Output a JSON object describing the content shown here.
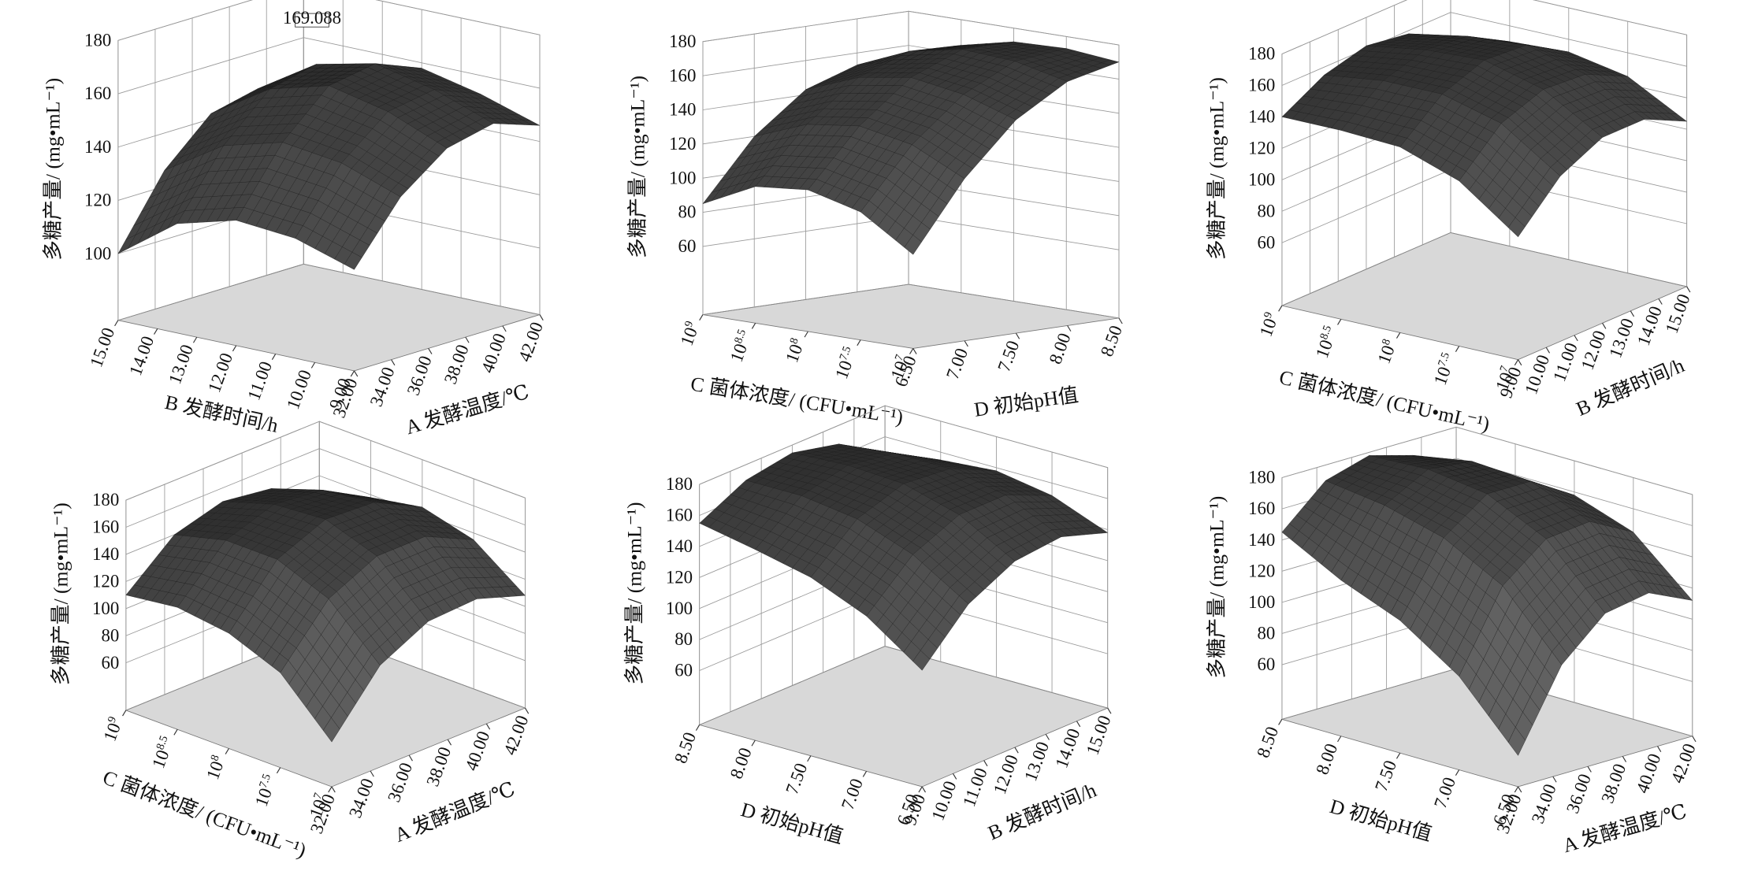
{
  "chart_data": [
    {
      "type": "surface",
      "annotation": "169.088",
      "zlabel": "多糖产量/ (mg•mL⁻¹)",
      "zlim": [
        75,
        180
      ],
      "zticks": [
        100,
        120,
        140,
        160,
        180
      ],
      "xlabel": "B 发酵时间/h",
      "xlim": [
        9,
        15
      ],
      "xticks": [
        {
          "value": 9,
          "label": "9.00"
        },
        {
          "value": 10,
          "label": "10.00"
        },
        {
          "value": 11,
          "label": "11.00"
        },
        {
          "value": 12,
          "label": "12.00"
        },
        {
          "value": 13,
          "label": "13.00"
        },
        {
          "value": 14,
          "label": "14.00"
        },
        {
          "value": 15,
          "label": "15.00"
        }
      ],
      "ylabel": "A 发酵温度/℃",
      "ylim": [
        32,
        42
      ],
      "yticks": [
        {
          "value": 32,
          "label": "32.00"
        },
        {
          "value": 34,
          "label": "34.00"
        },
        {
          "value": 36,
          "label": "36.00"
        },
        {
          "value": 38,
          "label": "38.00"
        },
        {
          "value": 40,
          "label": "40.00"
        },
        {
          "value": 42,
          "label": "42.00"
        }
      ],
      "x": [
        9,
        10.5,
        12,
        13.5,
        15
      ],
      "y": [
        32,
        34.5,
        37,
        39.5,
        42
      ],
      "z": [
        [
          113,
          135,
          148,
          152,
          146
        ],
        [
          120,
          143,
          157,
          160,
          153
        ],
        [
          122,
          146,
          162,
          165,
          158
        ],
        [
          116,
          140,
          156,
          160,
          152
        ],
        [
          100,
          126,
          142,
          146,
          138
        ]
      ],
      "color": "#4a4a4a"
    },
    {
      "type": "surface",
      "zlabel": "多糖产量/ (mg•mL⁻¹)",
      "zlim": [
        20,
        180
      ],
      "zticks": [
        60,
        80,
        100,
        120,
        140,
        160,
        180
      ],
      "xlabel": "C 菌体浓度/ (CFU•mL⁻¹)",
      "xlim": [
        7,
        9
      ],
      "xtick_style": "exponent",
      "xticks": [
        {
          "value": 7,
          "label": "10"
        },
        {
          "value": 7.5,
          "label": "10"
        },
        {
          "value": 8,
          "label": "10"
        },
        {
          "value": 8.5,
          "label": "10"
        },
        {
          "value": 9,
          "label": "10"
        }
      ],
      "ylabel": "D 初始pH值",
      "ylim": [
        6.5,
        8.5
      ],
      "yticks": [
        {
          "value": 6.5,
          "label": "6.50"
        },
        {
          "value": 7,
          "label": "7.00"
        },
        {
          "value": 7.5,
          "label": "7.50"
        },
        {
          "value": 8,
          "label": "8.00"
        },
        {
          "value": 8.5,
          "label": "8.50"
        }
      ],
      "x": [
        7,
        7.5,
        8,
        8.5,
        9
      ],
      "y": [
        6.5,
        7,
        7.5,
        8,
        8.5
      ],
      "z": [
        [
          75,
          115,
          145,
          163,
          170
        ],
        [
          95,
          130,
          155,
          170,
          173
        ],
        [
          103,
          136,
          160,
          172,
          172
        ],
        [
          100,
          132,
          155,
          166,
          165
        ],
        [
          85,
          120,
          143,
          153,
          150
        ]
      ],
      "color": "#4a4a4a"
    },
    {
      "type": "surface",
      "zlabel": "多糖产量/ (mg•mL⁻¹)",
      "zlim": [
        20,
        180
      ],
      "zticks": [
        60,
        80,
        100,
        120,
        140,
        160,
        180
      ],
      "xlabel": "C 菌体浓度/ (CFU•mL⁻¹)",
      "xlim": [
        7,
        9
      ],
      "xtick_style": "exponent",
      "xticks": [
        {
          "value": 7,
          "label": "10"
        },
        {
          "value": 7.5,
          "label": "10"
        },
        {
          "value": 8,
          "label": "10"
        },
        {
          "value": 8.5,
          "label": "10"
        },
        {
          "value": 9,
          "label": "10"
        }
      ],
      "ylabel": "B 发酵时间/h",
      "ylim": [
        9,
        15
      ],
      "yticks": [
        {
          "value": 9,
          "label": "9.00"
        },
        {
          "value": 10,
          "label": "10.00"
        },
        {
          "value": 11,
          "label": "11.00"
        },
        {
          "value": 12,
          "label": "12.00"
        },
        {
          "value": 13,
          "label": "13.00"
        },
        {
          "value": 14,
          "label": "14.00"
        },
        {
          "value": 15,
          "label": "15.00"
        }
      ],
      "x": [
        7,
        7.5,
        8,
        8.5,
        9
      ],
      "y": [
        9,
        10.5,
        12,
        13.5,
        15
      ],
      "z": [
        [
          98,
          125,
          138,
          138,
          125
        ],
        [
          125,
          150,
          160,
          158,
          145
        ],
        [
          138,
          160,
          170,
          168,
          152
        ],
        [
          140,
          160,
          168,
          165,
          150
        ],
        [
          140,
          155,
          162,
          158,
          140
        ]
      ],
      "color": "#4a4a4a"
    },
    {
      "type": "surface",
      "zlabel": "多糖产量/ (mg•mL⁻¹)",
      "zlim": [
        25,
        180
      ],
      "zticks": [
        60,
        80,
        100,
        120,
        140,
        160,
        180
      ],
      "xlabel": "C 菌体浓度/ (CFU•mL⁻¹)",
      "xlim": [
        7,
        9
      ],
      "xtick_style": "exponent",
      "xticks": [
        {
          "value": 7,
          "label": "10"
        },
        {
          "value": 7.5,
          "label": "10"
        },
        {
          "value": 8,
          "label": "10"
        },
        {
          "value": 8.5,
          "label": "10"
        },
        {
          "value": 9,
          "label": "10"
        }
      ],
      "ylabel": "A 发酵温度/℃",
      "ylim": [
        32,
        42
      ],
      "yticks": [
        {
          "value": 32,
          "label": "32.00"
        },
        {
          "value": 34,
          "label": "34.00"
        },
        {
          "value": 36,
          "label": "36.00"
        },
        {
          "value": 38,
          "label": "38.00"
        },
        {
          "value": 40,
          "label": "40.00"
        },
        {
          "value": 42,
          "label": "42.00"
        }
      ],
      "x": [
        7,
        7.5,
        8,
        8.5,
        9
      ],
      "y": [
        32,
        34.5,
        37,
        39.5,
        42
      ],
      "z": [
        [
          58,
          100,
          118,
          120,
          108
        ],
        [
          95,
          135,
          152,
          152,
          135
        ],
        [
          110,
          150,
          165,
          163,
          145
        ],
        [
          115,
          150,
          162,
          158,
          138
        ],
        [
          110,
          140,
          150,
          145,
          125
        ]
      ],
      "color": "#4a4a4a"
    },
    {
      "type": "surface",
      "zlabel": "多糖产量/ (mg•mL⁻¹)",
      "zlim": [
        25,
        180
      ],
      "zticks": [
        60,
        80,
        100,
        120,
        140,
        160,
        180
      ],
      "xlabel": "D 初始pH值",
      "xlim": [
        6.5,
        8.5
      ],
      "xticks": [
        {
          "value": 6.5,
          "label": "6.50"
        },
        {
          "value": 7,
          "label": "7.00"
        },
        {
          "value": 7.5,
          "label": "7.50"
        },
        {
          "value": 8,
          "label": "8.00"
        },
        {
          "value": 8.5,
          "label": "8.50"
        }
      ],
      "ylabel": "B 发酵时间/h",
      "ylim": [
        9,
        15
      ],
      "yticks": [
        {
          "value": 9,
          "label": "9.00"
        },
        {
          "value": 10,
          "label": "10.00"
        },
        {
          "value": 11,
          "label": "11.00"
        },
        {
          "value": 12,
          "label": "12.00"
        },
        {
          "value": 13,
          "label": "13.00"
        },
        {
          "value": 14,
          "label": "14.00"
        },
        {
          "value": 15,
          "label": "15.00"
        }
      ],
      "x": [
        6.5,
        7,
        7.5,
        8,
        8.5
      ],
      "y": [
        9,
        10.5,
        12,
        13.5,
        15
      ],
      "z": [
        [
          100,
          130,
          145,
          148,
          138
        ],
        [
          125,
          152,
          165,
          165,
          152
        ],
        [
          140,
          165,
          175,
          172,
          158
        ],
        [
          148,
          170,
          177,
          172,
          155
        ],
        [
          155,
          170,
          175,
          168,
          150
        ]
      ],
      "color": "#4a4a4a"
    },
    {
      "type": "surface",
      "zlabel": "多糖产量/ (mg•mL⁻¹)",
      "zlim": [
        25,
        180
      ],
      "zticks": [
        60,
        80,
        100,
        120,
        140,
        160,
        180
      ],
      "xlabel": "D 初始pH值",
      "xlim": [
        6.5,
        8.5
      ],
      "xticks": [
        {
          "value": 6.5,
          "label": "6.50"
        },
        {
          "value": 7,
          "label": "7.00"
        },
        {
          "value": 7.5,
          "label": "7.50"
        },
        {
          "value": 8,
          "label": "8.00"
        },
        {
          "value": 8.5,
          "label": "8.50"
        }
      ],
      "ylabel": "A 发酵温度/℃",
      "ylim": [
        32,
        42
      ],
      "yticks": [
        {
          "value": 32,
          "label": "32.00"
        },
        {
          "value": 34,
          "label": "34.00"
        },
        {
          "value": 36,
          "label": "36.00"
        },
        {
          "value": 38,
          "label": "38.00"
        },
        {
          "value": 40,
          "label": "40.00"
        },
        {
          "value": 42,
          "label": "42.00"
        }
      ],
      "x": [
        6.5,
        7,
        7.5,
        8,
        8.5
      ],
      "y": [
        32,
        34.5,
        37,
        39.5,
        42
      ],
      "z": [
        [
          45,
          95,
          120,
          125,
          112
        ],
        [
          85,
          135,
          157,
          160,
          145
        ],
        [
          110,
          155,
          175,
          175,
          158
        ],
        [
          125,
          165,
          180,
          177,
          158
        ],
        [
          145,
          170,
          178,
          170,
          148
        ]
      ],
      "color": "#4a4a4a"
    }
  ]
}
